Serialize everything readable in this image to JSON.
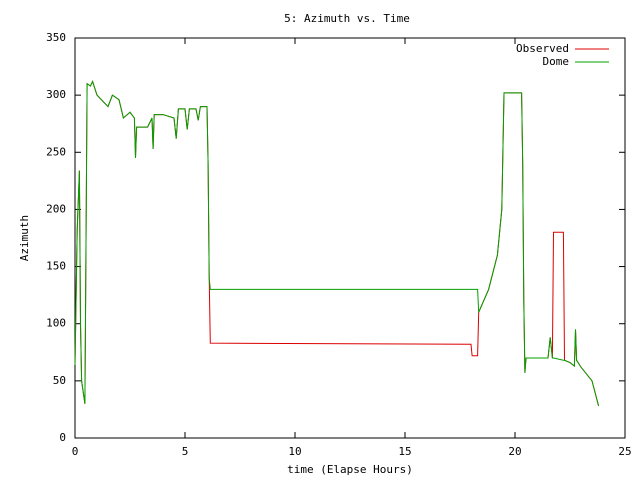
{
  "chart_data": {
    "type": "line",
    "title": "5: Azimuth vs. Time",
    "x_label": "time (Elapse Hours)",
    "y_label": "Azimuth",
    "x": [
      0,
      0.1,
      0.2,
      0.25,
      0.3,
      0.45,
      0.5,
      0.55,
      0.7,
      0.8,
      1.0,
      1.5,
      1.7,
      2.0,
      2.2,
      2.5,
      2.7,
      2.75,
      2.8,
      3.3,
      3.5,
      3.55,
      3.6,
      4.0,
      4.5,
      4.6,
      4.7,
      5.0,
      5.1,
      5.2,
      5.5,
      5.6,
      5.7,
      6.0,
      6.05,
      6.1,
      6.15,
      18.0,
      18.05,
      18.3,
      18.35,
      18.8,
      19.2,
      19.4,
      19.5,
      20.0,
      20.3,
      20.35,
      20.4,
      20.45,
      20.5,
      21.5,
      21.6,
      21.7,
      21.75,
      22.2,
      22.25,
      22.5,
      22.7,
      22.75,
      22.8,
      23.0,
      23.5,
      23.8
    ],
    "series": [
      {
        "name": "Observed",
        "color": "#dd0000",
        "values": [
          64,
          182,
          234,
          100,
          50,
          30,
          170,
          310,
          308,
          312,
          300,
          290,
          300,
          296,
          280,
          285,
          280,
          245,
          272,
          272,
          280,
          253,
          283,
          283,
          280,
          262,
          288,
          288,
          270,
          288,
          288,
          278,
          290,
          290,
          240,
          140,
          83,
          82,
          72,
          72,
          110,
          130,
          160,
          200,
          302,
          302,
          302,
          240,
          120,
          57,
          70,
          70,
          88,
          70,
          180,
          180,
          68,
          66,
          63,
          95,
          68,
          62,
          50,
          28
        ]
      },
      {
        "name": "Dome",
        "color": "#00a000",
        "values": [
          64,
          182,
          234,
          100,
          50,
          30,
          170,
          310,
          308,
          312,
          300,
          290,
          300,
          296,
          280,
          285,
          280,
          245,
          272,
          272,
          280,
          253,
          283,
          283,
          280,
          262,
          288,
          288,
          270,
          288,
          288,
          278,
          290,
          290,
          240,
          140,
          130,
          130,
          130,
          130,
          110,
          130,
          160,
          200,
          302,
          302,
          302,
          240,
          120,
          57,
          70,
          70,
          88,
          70,
          70,
          68,
          68,
          66,
          63,
          95,
          68,
          62,
          50,
          28
        ]
      }
    ],
    "xlim": [
      0,
      25
    ],
    "xticks": [
      0,
      5,
      10,
      15,
      20,
      25
    ],
    "ylim": [
      0,
      350
    ],
    "yticks": [
      0,
      50,
      100,
      150,
      200,
      250,
      300,
      350
    ],
    "legend": "top-right"
  }
}
